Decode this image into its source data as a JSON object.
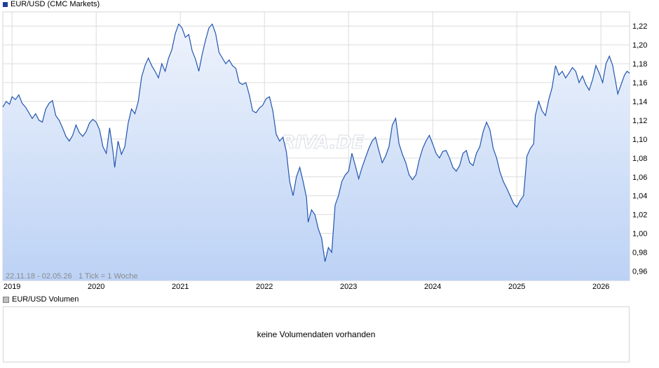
{
  "price_panel": {
    "legend": "EUR/USD (CMC Markets)",
    "legend_color": "#1f3d99",
    "range_info": "22.11.18 - 02.05.26",
    "tick_info": "1 Tick = 1 Woche",
    "watermark": "ARIVA.DE"
  },
  "volume_panel": {
    "legend": "EUR/USD Volumen",
    "legend_color": "#bfbfbf",
    "empty_message": "keine Volumendaten vorhanden"
  },
  "colors": {
    "line": "#2255b0",
    "fill_top": "#eef3fc",
    "fill_bottom": "#bcd2f5",
    "grid": "#dcdcdc"
  },
  "chart_data": {
    "type": "area",
    "title": "EUR/USD (CMC Markets)",
    "x_range": [
      2018.89,
      2026.34
    ],
    "ylim": [
      0.95,
      1.235
    ],
    "y_ticks": [
      "0,96",
      "0,98",
      "1,00",
      "1,02",
      "1,04",
      "1,06",
      "1,08",
      "1,10",
      "1,12",
      "1,14",
      "1,16",
      "1,18",
      "1,20",
      "1,22"
    ],
    "x_ticks": [
      "2019",
      "2020",
      "2021",
      "2022",
      "2023",
      "2024",
      "2025",
      "2026"
    ],
    "grid": true,
    "series": [
      {
        "values": [
          [
            2018.89,
            1.134
          ],
          [
            2018.93,
            1.14
          ],
          [
            2018.97,
            1.137
          ],
          [
            2019.0,
            1.145
          ],
          [
            2019.04,
            1.142
          ],
          [
            2019.08,
            1.147
          ],
          [
            2019.12,
            1.138
          ],
          [
            2019.16,
            1.134
          ],
          [
            2019.2,
            1.128
          ],
          [
            2019.24,
            1.122
          ],
          [
            2019.28,
            1.127
          ],
          [
            2019.32,
            1.12
          ],
          [
            2019.36,
            1.118
          ],
          [
            2019.4,
            1.132
          ],
          [
            2019.44,
            1.138
          ],
          [
            2019.48,
            1.141
          ],
          [
            2019.52,
            1.125
          ],
          [
            2019.56,
            1.12
          ],
          [
            2019.6,
            1.112
          ],
          [
            2019.64,
            1.103
          ],
          [
            2019.68,
            1.098
          ],
          [
            2019.72,
            1.104
          ],
          [
            2019.76,
            1.115
          ],
          [
            2019.8,
            1.107
          ],
          [
            2019.84,
            1.103
          ],
          [
            2019.88,
            1.108
          ],
          [
            2019.92,
            1.117
          ],
          [
            2019.96,
            1.121
          ],
          [
            2020.0,
            1.118
          ],
          [
            2020.04,
            1.11
          ],
          [
            2020.08,
            1.092
          ],
          [
            2020.12,
            1.085
          ],
          [
            2020.16,
            1.112
          ],
          [
            2020.2,
            1.087
          ],
          [
            2020.22,
            1.07
          ],
          [
            2020.26,
            1.098
          ],
          [
            2020.3,
            1.084
          ],
          [
            2020.34,
            1.092
          ],
          [
            2020.38,
            1.117
          ],
          [
            2020.42,
            1.132
          ],
          [
            2020.46,
            1.127
          ],
          [
            2020.5,
            1.14
          ],
          [
            2020.54,
            1.166
          ],
          [
            2020.58,
            1.178
          ],
          [
            2020.62,
            1.186
          ],
          [
            2020.66,
            1.178
          ],
          [
            2020.7,
            1.172
          ],
          [
            2020.74,
            1.165
          ],
          [
            2020.78,
            1.18
          ],
          [
            2020.82,
            1.172
          ],
          [
            2020.86,
            1.186
          ],
          [
            2020.9,
            1.195
          ],
          [
            2020.94,
            1.212
          ],
          [
            2020.98,
            1.222
          ],
          [
            2021.02,
            1.218
          ],
          [
            2021.06,
            1.208
          ],
          [
            2021.1,
            1.211
          ],
          [
            2021.14,
            1.194
          ],
          [
            2021.18,
            1.185
          ],
          [
            2021.22,
            1.172
          ],
          [
            2021.26,
            1.19
          ],
          [
            2021.3,
            1.205
          ],
          [
            2021.34,
            1.218
          ],
          [
            2021.38,
            1.222
          ],
          [
            2021.42,
            1.212
          ],
          [
            2021.46,
            1.192
          ],
          [
            2021.5,
            1.186
          ],
          [
            2021.54,
            1.18
          ],
          [
            2021.58,
            1.184
          ],
          [
            2021.62,
            1.178
          ],
          [
            2021.66,
            1.175
          ],
          [
            2021.7,
            1.16
          ],
          [
            2021.74,
            1.158
          ],
          [
            2021.78,
            1.16
          ],
          [
            2021.82,
            1.147
          ],
          [
            2021.86,
            1.13
          ],
          [
            2021.9,
            1.128
          ],
          [
            2021.94,
            1.133
          ],
          [
            2021.98,
            1.136
          ],
          [
            2022.02,
            1.143
          ],
          [
            2022.06,
            1.145
          ],
          [
            2022.1,
            1.13
          ],
          [
            2022.14,
            1.105
          ],
          [
            2022.18,
            1.098
          ],
          [
            2022.22,
            1.102
          ],
          [
            2022.26,
            1.087
          ],
          [
            2022.3,
            1.055
          ],
          [
            2022.34,
            1.04
          ],
          [
            2022.38,
            1.06
          ],
          [
            2022.42,
            1.07
          ],
          [
            2022.46,
            1.055
          ],
          [
            2022.5,
            1.038
          ],
          [
            2022.52,
            1.012
          ],
          [
            2022.56,
            1.025
          ],
          [
            2022.6,
            1.02
          ],
          [
            2022.64,
            1.005
          ],
          [
            2022.68,
            0.995
          ],
          [
            2022.72,
            0.97
          ],
          [
            2022.76,
            0.985
          ],
          [
            2022.8,
            0.98
          ],
          [
            2022.84,
            1.03
          ],
          [
            2022.88,
            1.04
          ],
          [
            2022.92,
            1.055
          ],
          [
            2022.96,
            1.062
          ],
          [
            2023.0,
            1.066
          ],
          [
            2023.04,
            1.085
          ],
          [
            2023.08,
            1.072
          ],
          [
            2023.12,
            1.058
          ],
          [
            2023.16,
            1.07
          ],
          [
            2023.2,
            1.08
          ],
          [
            2023.24,
            1.09
          ],
          [
            2023.28,
            1.098
          ],
          [
            2023.32,
            1.102
          ],
          [
            2023.36,
            1.088
          ],
          [
            2023.4,
            1.075
          ],
          [
            2023.44,
            1.082
          ],
          [
            2023.48,
            1.092
          ],
          [
            2023.52,
            1.115
          ],
          [
            2023.56,
            1.122
          ],
          [
            2023.6,
            1.095
          ],
          [
            2023.64,
            1.084
          ],
          [
            2023.68,
            1.075
          ],
          [
            2023.72,
            1.062
          ],
          [
            2023.76,
            1.057
          ],
          [
            2023.8,
            1.062
          ],
          [
            2023.84,
            1.078
          ],
          [
            2023.88,
            1.09
          ],
          [
            2023.92,
            1.098
          ],
          [
            2023.96,
            1.104
          ],
          [
            2024.0,
            1.095
          ],
          [
            2024.04,
            1.085
          ],
          [
            2024.08,
            1.08
          ],
          [
            2024.12,
            1.087
          ],
          [
            2024.16,
            1.088
          ],
          [
            2024.2,
            1.08
          ],
          [
            2024.24,
            1.07
          ],
          [
            2024.28,
            1.066
          ],
          [
            2024.32,
            1.072
          ],
          [
            2024.36,
            1.085
          ],
          [
            2024.4,
            1.088
          ],
          [
            2024.44,
            1.075
          ],
          [
            2024.48,
            1.072
          ],
          [
            2024.52,
            1.085
          ],
          [
            2024.56,
            1.092
          ],
          [
            2024.6,
            1.108
          ],
          [
            2024.64,
            1.118
          ],
          [
            2024.68,
            1.11
          ],
          [
            2024.72,
            1.09
          ],
          [
            2024.76,
            1.08
          ],
          [
            2024.8,
            1.065
          ],
          [
            2024.84,
            1.055
          ],
          [
            2024.88,
            1.048
          ],
          [
            2024.92,
            1.04
          ],
          [
            2024.96,
            1.032
          ],
          [
            2025.0,
            1.028
          ],
          [
            2025.04,
            1.035
          ],
          [
            2025.08,
            1.04
          ],
          [
            2025.12,
            1.082
          ],
          [
            2025.16,
            1.09
          ],
          [
            2025.2,
            1.095
          ],
          [
            2025.22,
            1.125
          ],
          [
            2025.26,
            1.14
          ],
          [
            2025.3,
            1.13
          ],
          [
            2025.34,
            1.125
          ],
          [
            2025.38,
            1.142
          ],
          [
            2025.42,
            1.155
          ],
          [
            2025.46,
            1.178
          ],
          [
            2025.5,
            1.168
          ],
          [
            2025.54,
            1.172
          ],
          [
            2025.58,
            1.165
          ],
          [
            2025.62,
            1.17
          ],
          [
            2025.66,
            1.176
          ],
          [
            2025.7,
            1.172
          ],
          [
            2025.74,
            1.16
          ],
          [
            2025.78,
            1.167
          ],
          [
            2025.82,
            1.158
          ],
          [
            2025.86,
            1.152
          ],
          [
            2025.9,
            1.163
          ],
          [
            2025.94,
            1.178
          ],
          [
            2025.98,
            1.17
          ],
          [
            2026.02,
            1.16
          ],
          [
            2026.06,
            1.18
          ],
          [
            2026.1,
            1.188
          ],
          [
            2026.14,
            1.178
          ],
          [
            2026.18,
            1.158
          ],
          [
            2026.2,
            1.148
          ],
          [
            2026.24,
            1.158
          ],
          [
            2026.28,
            1.168
          ],
          [
            2026.31,
            1.172
          ],
          [
            2026.34,
            1.17
          ]
        ]
      }
    ]
  }
}
